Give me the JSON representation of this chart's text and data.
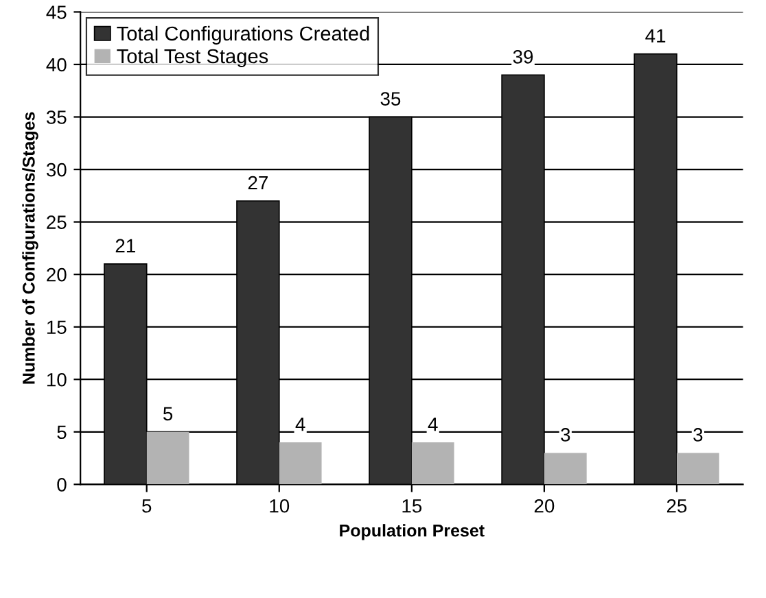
{
  "chart_data": {
    "type": "bar",
    "xlabel": "Population Preset",
    "ylabel": "Number of Configurations/Stages",
    "categories": [
      "5",
      "10",
      "15",
      "20",
      "25"
    ],
    "series": [
      {
        "name": "Total Configurations Created",
        "color": "#333333",
        "values": [
          21,
          27,
          35,
          39,
          41
        ]
      },
      {
        "name": "Total Test Stages",
        "color": "#b3b3b3",
        "values": [
          5,
          4,
          4,
          3,
          3
        ]
      }
    ],
    "ylim": [
      0,
      45
    ],
    "yticks": [
      0,
      5,
      10,
      15,
      20,
      25,
      30,
      35,
      40,
      45
    ],
    "grid": "y",
    "legend": "top left",
    "data_labels": true
  }
}
